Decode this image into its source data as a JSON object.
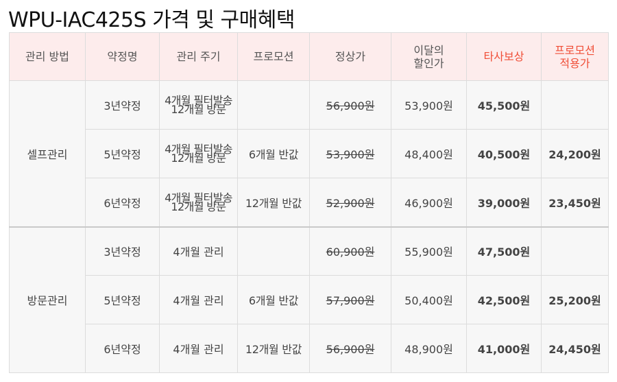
{
  "title": "WPU-IAC425S 가격 및 구매혜택",
  "colors": {
    "accent": "#f04e37",
    "header_bg": "#fdecec",
    "body_bg": "#f7f7f7"
  },
  "headers": {
    "method": "관리 방법",
    "contract": "약정명",
    "cycle": "관리 주기",
    "promotion": "프로모션",
    "regular": "정상가",
    "discount_1": "이달의",
    "discount_2": "할인가",
    "competitor": "타사보상",
    "promo_price_1": "프로모션",
    "promo_price_2": "적용가"
  },
  "groups": [
    {
      "method": "셀프관리",
      "rows": [
        {
          "contract": "3년약정",
          "cycle_1": "4개월 필터발송",
          "cycle_2": "12개월 방문",
          "promotion": "",
          "regular": "56,900원",
          "discount": "53,900원",
          "competitor": "45,500원",
          "promo_price": ""
        },
        {
          "contract": "5년약정",
          "cycle_1": "4개월 필터발송",
          "cycle_2": "12개월 방문",
          "promotion": "6개월 반값",
          "regular": "53,900원",
          "discount": "48,400원",
          "competitor": "40,500원",
          "promo_price": "24,200원"
        },
        {
          "contract": "6년약정",
          "cycle_1": "4개월 필터발송",
          "cycle_2": "12개월 방문",
          "promotion": "12개월 반값",
          "regular": "52,900원",
          "discount": "46,900원",
          "competitor": "39,000원",
          "promo_price": "23,450원"
        }
      ]
    },
    {
      "method": "방문관리",
      "rows": [
        {
          "contract": "3년약정",
          "cycle": "4개월 관리",
          "promotion": "",
          "regular": "60,900원",
          "discount": "55,900원",
          "competitor": "47,500원",
          "promo_price": ""
        },
        {
          "contract": "5년약정",
          "cycle": "4개월 관리",
          "promotion": "6개월 반값",
          "regular": "57,900원",
          "discount": "50,400원",
          "competitor": "42,500원",
          "promo_price": "25,200원"
        },
        {
          "contract": "6년약정",
          "cycle": "4개월 관리",
          "promotion": "12개월 반값",
          "regular": "56,900원",
          "discount": "48,900원",
          "competitor": "41,000원",
          "promo_price": "24,450원"
        }
      ]
    }
  ]
}
